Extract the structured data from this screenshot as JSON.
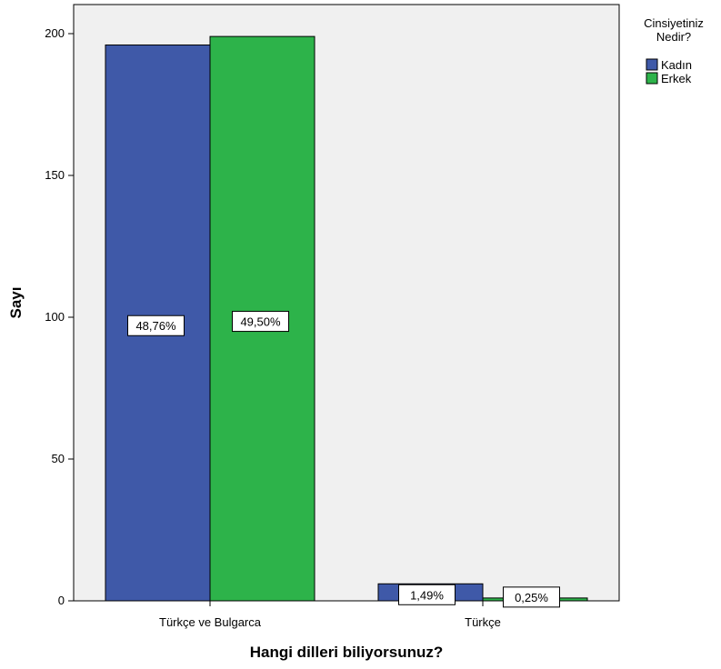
{
  "chart_data": {
    "type": "bar",
    "xlabel": "Hangi dilleri biliyorsunuz?",
    "ylabel": "Sayı",
    "categories": [
      "Türkçe ve Bulgarca",
      "Türkçe"
    ],
    "series": [
      {
        "name": "Kadın",
        "color": "#3F59A8",
        "values": [
          196,
          6
        ],
        "labels": [
          "48,76%",
          "1,49%"
        ]
      },
      {
        "name": "Erkek",
        "color": "#2DB34A",
        "values": [
          199,
          1
        ],
        "labels": [
          "49,50%",
          "0,25%"
        ]
      }
    ],
    "ylim": [
      0,
      210
    ],
    "yticks": [
      0,
      50,
      100,
      150,
      200
    ],
    "grid": false,
    "legend": {
      "title": "Cinsiyetiniz Nedir?",
      "position": "top-right"
    },
    "plot_background": "#F0F0F0"
  }
}
